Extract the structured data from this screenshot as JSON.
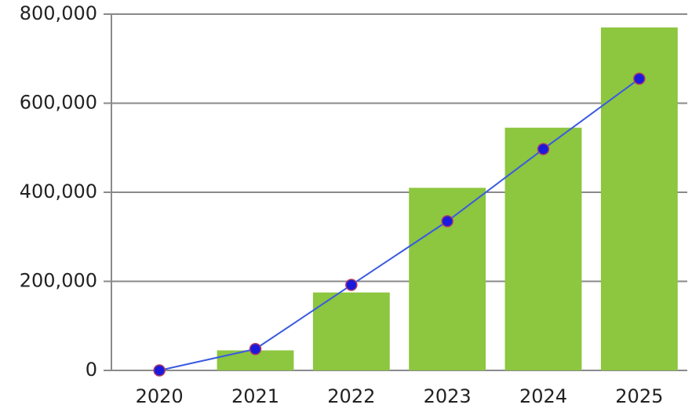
{
  "chart_data": {
    "type": "bar",
    "categories": [
      "2020",
      "2021",
      "2022",
      "2023",
      "2024",
      "2025"
    ],
    "series": [
      {
        "color": "#8dc63f",
        "values": [
          0,
          45000,
          175000,
          410000,
          545000,
          770000
        ]
      },
      {
        "type": "line",
        "color": "#3a5be0",
        "values": [
          0,
          48000,
          192000,
          335000,
          497000,
          655000
        ]
      }
    ],
    "ylim": [
      0,
      800000
    ],
    "yticks": [
      0,
      {
        "value": 200000,
        "label": "200,000"
      },
      {
        "value": 400000,
        "label": "400,000"
      },
      {
        "value": 600000,
        "label": "600,000"
      },
      {
        "value": 800000,
        "label": "800,000"
      }
    ],
    "grid": true
  }
}
